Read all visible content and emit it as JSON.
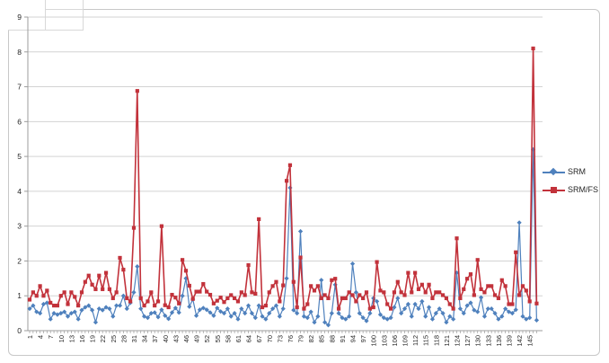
{
  "chart_data": {
    "type": "line",
    "title": "",
    "xlabel": "",
    "ylabel": "",
    "ylim": [
      0,
      9
    ],
    "y_ticks": [
      0,
      1,
      2,
      3,
      4,
      5,
      6,
      7,
      8,
      9
    ],
    "grid": true,
    "legend_position": "right",
    "x_start": 1,
    "x_tick_step": 3,
    "x_tick_labels": [
      "1",
      "4",
      "7",
      "10",
      "13",
      "16",
      "19",
      "22",
      "25",
      "28",
      "31",
      "34",
      "37",
      "40",
      "43",
      "46",
      "49",
      "52",
      "55",
      "58",
      "61",
      "64",
      "67",
      "70",
      "73",
      "76",
      "79",
      "82",
      "85",
      "88",
      "91",
      "94",
      "97",
      "100",
      "103",
      "106",
      "109",
      "112",
      "115",
      "118",
      "121",
      "124",
      "127",
      "130",
      "133",
      "136",
      "139",
      "142",
      "145"
    ],
    "series": [
      {
        "name": "SRM",
        "color": "#4F81BD",
        "marker": "diamond",
        "values": [
          0.63,
          0.72,
          0.54,
          0.5,
          0.76,
          0.8,
          0.33,
          0.5,
          0.46,
          0.5,
          0.54,
          0.41,
          0.5,
          0.54,
          0.33,
          0.59,
          0.67,
          0.72,
          0.59,
          0.24,
          0.63,
          0.59,
          0.67,
          0.63,
          0.41,
          0.72,
          0.72,
          1.0,
          0.63,
          0.8,
          1.1,
          1.84,
          0.63,
          0.41,
          0.37,
          0.5,
          0.52,
          0.39,
          0.6,
          0.43,
          0.34,
          0.52,
          0.65,
          0.52,
          1.0,
          1.5,
          0.69,
          0.9,
          0.43,
          0.6,
          0.65,
          0.6,
          0.52,
          0.43,
          0.65,
          0.55,
          0.5,
          0.63,
          0.41,
          0.5,
          0.33,
          0.63,
          0.5,
          0.72,
          0.5,
          0.37,
          0.72,
          0.41,
          0.33,
          0.5,
          0.63,
          0.72,
          0.41,
          0.63,
          1.5,
          4.1,
          0.59,
          0.5,
          2.85,
          0.41,
          0.37,
          0.54,
          0.24,
          0.41,
          1.45,
          0.24,
          0.16,
          0.5,
          1.32,
          0.5,
          0.37,
          0.33,
          0.41,
          1.92,
          1.1,
          0.5,
          0.37,
          0.28,
          0.5,
          0.93,
          0.84,
          0.46,
          0.37,
          0.33,
          0.37,
          0.67,
          0.93,
          0.5,
          0.63,
          0.76,
          0.41,
          0.76,
          0.63,
          0.84,
          0.41,
          0.67,
          0.33,
          0.5,
          0.63,
          0.5,
          0.24,
          0.41,
          0.33,
          1.66,
          0.63,
          0.5,
          0.72,
          0.8,
          0.59,
          0.54,
          0.95,
          0.41,
          0.63,
          0.63,
          0.5,
          0.33,
          0.41,
          0.63,
          0.54,
          0.5,
          0.6,
          3.1,
          0.41,
          0.33,
          0.37,
          5.2,
          0.3
        ]
      },
      {
        "name": "SRM/FS",
        "color": "#C2323B",
        "marker": "square",
        "values": [
          0.89,
          1.1,
          1.0,
          1.28,
          1.0,
          1.15,
          0.8,
          0.72,
          0.72,
          1.0,
          1.1,
          0.76,
          1.1,
          0.97,
          0.72,
          1.1,
          1.4,
          1.58,
          1.32,
          1.19,
          1.58,
          1.19,
          1.66,
          1.19,
          0.93,
          1.1,
          2.09,
          1.75,
          0.93,
          0.84,
          2.95,
          6.88,
          0.93,
          0.72,
          0.84,
          1.1,
          0.72,
          0.84,
          3.0,
          0.73,
          0.67,
          1.03,
          0.95,
          0.78,
          2.03,
          1.72,
          1.29,
          0.91,
          1.12,
          1.12,
          1.34,
          1.12,
          1.03,
          0.78,
          0.86,
          0.95,
          0.82,
          0.93,
          1.02,
          0.93,
          0.84,
          1.1,
          1.02,
          1.88,
          1.1,
          1.06,
          3.2,
          0.67,
          0.72,
          1.1,
          1.28,
          1.4,
          0.84,
          1.3,
          4.3,
          4.75,
          1.4,
          0.67,
          2.1,
          0.63,
          0.76,
          1.28,
          1.15,
          1.28,
          0.93,
          1.02,
          0.93,
          1.45,
          1.49,
          0.63,
          0.93,
          0.93,
          1.1,
          1.02,
          0.84,
          1.02,
          0.93,
          1.1,
          0.63,
          0.67,
          1.97,
          1.15,
          1.1,
          0.76,
          0.63,
          1.1,
          1.4,
          1.1,
          1.02,
          1.66,
          1.1,
          1.66,
          1.19,
          1.32,
          1.1,
          1.32,
          0.93,
          1.1,
          1.1,
          1.02,
          0.93,
          0.76,
          0.63,
          2.65,
          0.93,
          1.19,
          1.49,
          1.62,
          1.02,
          2.03,
          1.19,
          1.1,
          1.28,
          1.28,
          1.02,
          0.93,
          1.45,
          1.28,
          0.76,
          0.76,
          2.25,
          1.02,
          1.28,
          1.15,
          0.84,
          8.1,
          0.78
        ]
      }
    ]
  },
  "colors": {
    "gridline": "#D3D3D3",
    "axis": "#9C9C9C",
    "tick_text": "#262626",
    "frame_border": "#C8C8C8",
    "background": "#FFFFFF"
  }
}
